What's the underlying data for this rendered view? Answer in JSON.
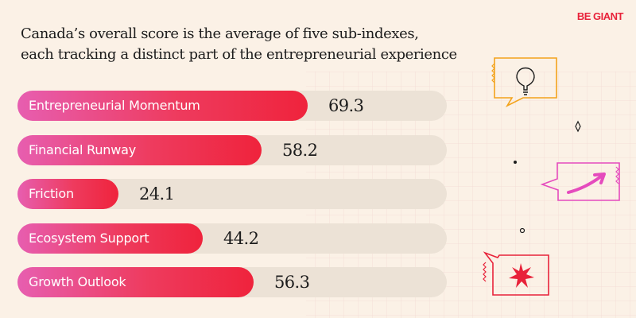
{
  "brand": "BE GIANT",
  "header": {
    "title_line1": "Canada’s overall score is the average of five sub-indexes,",
    "title_line2": "each tracking a distinct part of the entrepreneurial experience"
  },
  "colors": {
    "accent": "#ef233c",
    "gradient_start": "#e75eb0",
    "track": "#ece2d6",
    "background": "#fbf1e6",
    "icon_orange": "#f3a31c",
    "icon_pink": "#e54bbd",
    "icon_red": "#e8223a"
  },
  "icons": [
    "lightbulb-icon",
    "trend-arrow-icon",
    "starburst-icon"
  ],
  "chart_data": {
    "type": "bar",
    "orientation": "horizontal",
    "categories": [
      "Entrepreneurial Momentum",
      "Financial Runway",
      "Friction",
      "Ecosystem Support",
      "Growth Outlook"
    ],
    "values": [
      69.3,
      58.2,
      24.1,
      44.2,
      56.3
    ],
    "value_labels": [
      "69.3",
      "58.2",
      "24.1",
      "44.2",
      "56.3"
    ],
    "xlim": [
      0,
      100
    ],
    "grid": false,
    "legend": "none"
  }
}
